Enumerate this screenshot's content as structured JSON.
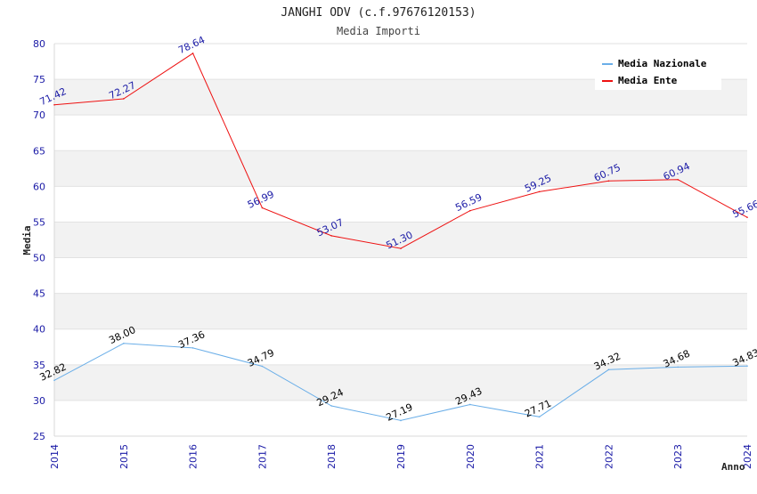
{
  "header": {
    "title": "JANGHI ODV (c.f.97676120153)",
    "subtitle": "Media Importi"
  },
  "chart_data": {
    "type": "line",
    "xlabel": "Anno",
    "ylabel": "Media",
    "ylim": [
      25,
      80
    ],
    "yticks": [
      25,
      30,
      35,
      40,
      45,
      50,
      55,
      60,
      65,
      70,
      75,
      80
    ],
    "x": [
      "2014",
      "2015",
      "2016",
      "2017",
      "2018",
      "2019",
      "2020",
      "2021",
      "2022",
      "2023",
      "2024"
    ],
    "grid": true,
    "legend_position": "top-right",
    "series": [
      {
        "name": "Media Nazionale",
        "color": "#6aaee8",
        "label_color": "#000000",
        "values": [
          32.82,
          38.0,
          37.36,
          34.79,
          29.24,
          27.19,
          29.43,
          27.71,
          34.32,
          34.68,
          34.83
        ],
        "labels": [
          "32.82",
          "38.00",
          "37.36",
          "34.79",
          "29.24",
          "27.19",
          "29.43",
          "27.71",
          "34.32",
          "34.68",
          "34.83"
        ]
      },
      {
        "name": "Media Ente",
        "color": "#ee1111",
        "label_color": "#1a1aa6",
        "values": [
          71.42,
          72.27,
          78.64,
          56.99,
          53.07,
          51.3,
          56.59,
          59.25,
          60.75,
          60.94,
          55.66
        ],
        "labels": [
          "71.42",
          "72.27",
          "78.64",
          "56.99",
          "53.07",
          "51.30",
          "56.59",
          "59.25",
          "60.75",
          "60.94",
          "55.66"
        ]
      }
    ]
  }
}
